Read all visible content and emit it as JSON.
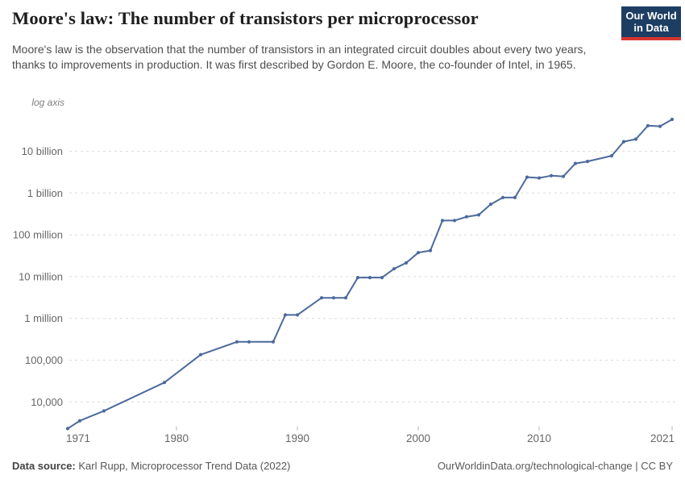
{
  "header": {
    "title": "Moore's law: The number of transistors per microprocessor",
    "subtitle": "Moore's law is the observation that the number of transistors in an integrated circuit doubles about every two years, thanks to improvements in production. It was first described by Gordon E. Moore, the co-founder of Intel, in 1965.",
    "logo": {
      "line1": "Our World",
      "line2": "in Data",
      "bg_color": "#1d3d63",
      "accent_color": "#d7352f",
      "text_color": "#ffffff"
    }
  },
  "chart_data": {
    "type": "line",
    "title": "Transistors per microprocessor",
    "log_axis_note": "log axis",
    "y_scale": "log",
    "grid": true,
    "legend": "none",
    "line_color": "#4c6a9c",
    "grid_color": "#dcdcdc",
    "xlim": [
      1971,
      2021
    ],
    "ylim": [
      2308,
      58000000000
    ],
    "x": [
      1971,
      1972,
      1974,
      1979,
      1982,
      1985,
      1986,
      1988,
      1989,
      1990,
      1992,
      1993,
      1994,
      1995,
      1996,
      1997,
      1998,
      1999,
      2000,
      2001,
      2002,
      2003,
      2004,
      2005,
      2006,
      2007,
      2008,
      2009,
      2010,
      2011,
      2012,
      2013,
      2014,
      2016,
      2017,
      2018,
      2019,
      2020,
      2021
    ],
    "y": [
      2308,
      3555,
      6098,
      29162,
      135000,
      274000,
      274000,
      274000,
      1210000,
      1210000,
      3100000,
      3100000,
      3100000,
      9500000,
      9500000,
      9500000,
      15400000,
      21300000,
      37500000,
      42000000,
      220000000,
      220000000,
      271000000,
      300000000,
      540000000,
      780000000,
      780000000,
      2400000000,
      2300000000,
      2600000000,
      2500000000,
      5100000000,
      5700000000,
      7800000000,
      17000000000,
      19500000000,
      41000000000,
      39500000000,
      58000000000
    ],
    "x_ticks": [
      {
        "year": 1971,
        "label": "1971"
      },
      {
        "year": 1980,
        "label": "1980"
      },
      {
        "year": 1990,
        "label": "1990"
      },
      {
        "year": 2000,
        "label": "2000"
      },
      {
        "year": 2010,
        "label": "2010"
      },
      {
        "year": 2021,
        "label": "2021"
      }
    ],
    "y_ticks": [
      {
        "value": 10000,
        "label": "10,000"
      },
      {
        "value": 100000,
        "label": "100,000"
      },
      {
        "value": 1000000,
        "label": "1 million"
      },
      {
        "value": 10000000,
        "label": "10 million"
      },
      {
        "value": 100000000,
        "label": "100 million"
      },
      {
        "value": 1000000000,
        "label": "1 billion"
      },
      {
        "value": 10000000000,
        "label": "10 billion"
      }
    ]
  },
  "footer": {
    "datasource_label": "Data source:",
    "datasource_value": "Karl Rupp, Microprocessor Trend Data (2022)",
    "url": "OurWorldinData.org/technological-change",
    "license": " | CC BY"
  }
}
